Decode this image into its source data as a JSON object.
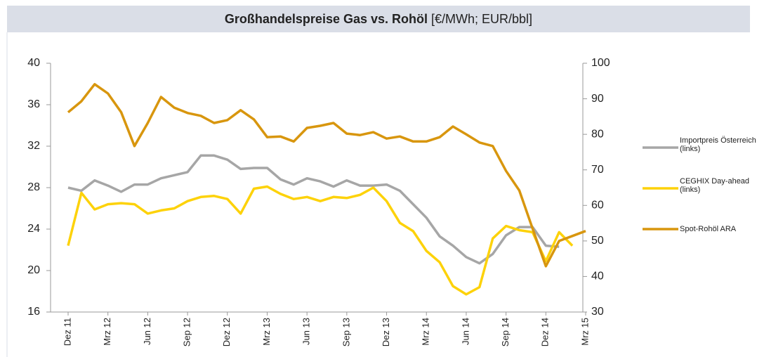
{
  "chart_data": {
    "type": "line",
    "title": "Großhandelspreise Gas vs. Rohöl",
    "subtitle": "[€/MWh; EUR/bbl]",
    "categories": [
      "Dez 11",
      null,
      null,
      "Mrz 12",
      null,
      null,
      "Jun 12",
      null,
      null,
      "Sep 12",
      null,
      null,
      "Dez 12",
      null,
      null,
      "Mrz 13",
      null,
      null,
      "Jun 13",
      null,
      null,
      "Sep 13",
      null,
      null,
      "Dez 13",
      null,
      null,
      "Mrz 14",
      null,
      null,
      "Jun 14",
      null,
      null,
      "Sep 14",
      null,
      null,
      "Dez 14",
      null,
      null,
      "Mrz 15"
    ],
    "series": [
      {
        "name": "Importpreis Österreich (links)",
        "color": "#a6a6a6",
        "axis": "y",
        "values": [
          28.0,
          27.7,
          28.7,
          28.2,
          27.6,
          28.3,
          28.3,
          28.9,
          29.2,
          29.5,
          31.1,
          31.1,
          30.7,
          29.8,
          29.9,
          29.9,
          28.8,
          28.3,
          28.9,
          28.6,
          28.1,
          28.7,
          28.2,
          28.2,
          28.3,
          27.7,
          26.4,
          25.1,
          23.3,
          22.4,
          21.3,
          20.7,
          21.6,
          23.4,
          24.2,
          24.2,
          22.4,
          22.3,
          null,
          null
        ]
      },
      {
        "name": "CEGHIX Day-ahead (links)",
        "color": "#fdd20a",
        "axis": "y",
        "values": [
          22.4,
          27.5,
          25.9,
          26.4,
          26.5,
          26.4,
          25.5,
          25.8,
          26.0,
          26.7,
          27.1,
          27.2,
          26.9,
          25.5,
          27.9,
          28.1,
          27.4,
          26.9,
          27.1,
          26.7,
          27.1,
          27.0,
          27.3,
          28.0,
          26.7,
          24.6,
          23.8,
          21.9,
          20.8,
          18.5,
          17.7,
          18.4,
          23.1,
          24.3,
          23.9,
          23.7,
          20.9,
          23.7,
          22.4,
          null
        ]
      },
      {
        "name": "Spot-Rohöl ARA",
        "color": "#d8960e",
        "axis": "y2",
        "values": [
          86.2,
          89.3,
          94.1,
          91.5,
          86.2,
          76.7,
          83.2,
          90.5,
          87.5,
          86.0,
          85.2,
          83.2,
          84.0,
          86.8,
          84.2,
          79.2,
          79.4,
          78.0,
          81.8,
          82.4,
          83.2,
          80.2,
          79.8,
          80.6,
          78.8,
          79.4,
          78.0,
          78.0,
          79.2,
          82.2,
          80.0,
          77.7,
          76.7,
          69.7,
          64.2,
          53.5,
          42.9,
          50.0,
          51.4,
          52.8
        ]
      }
    ],
    "ylim": [
      16,
      40
    ],
    "yticks": [
      16,
      20,
      24,
      28,
      32,
      36,
      40
    ],
    "y2lim": [
      30,
      100
    ],
    "y2ticks": [
      30,
      40,
      50,
      60,
      70,
      80,
      90,
      100
    ],
    "grid": false,
    "legend": "right"
  }
}
